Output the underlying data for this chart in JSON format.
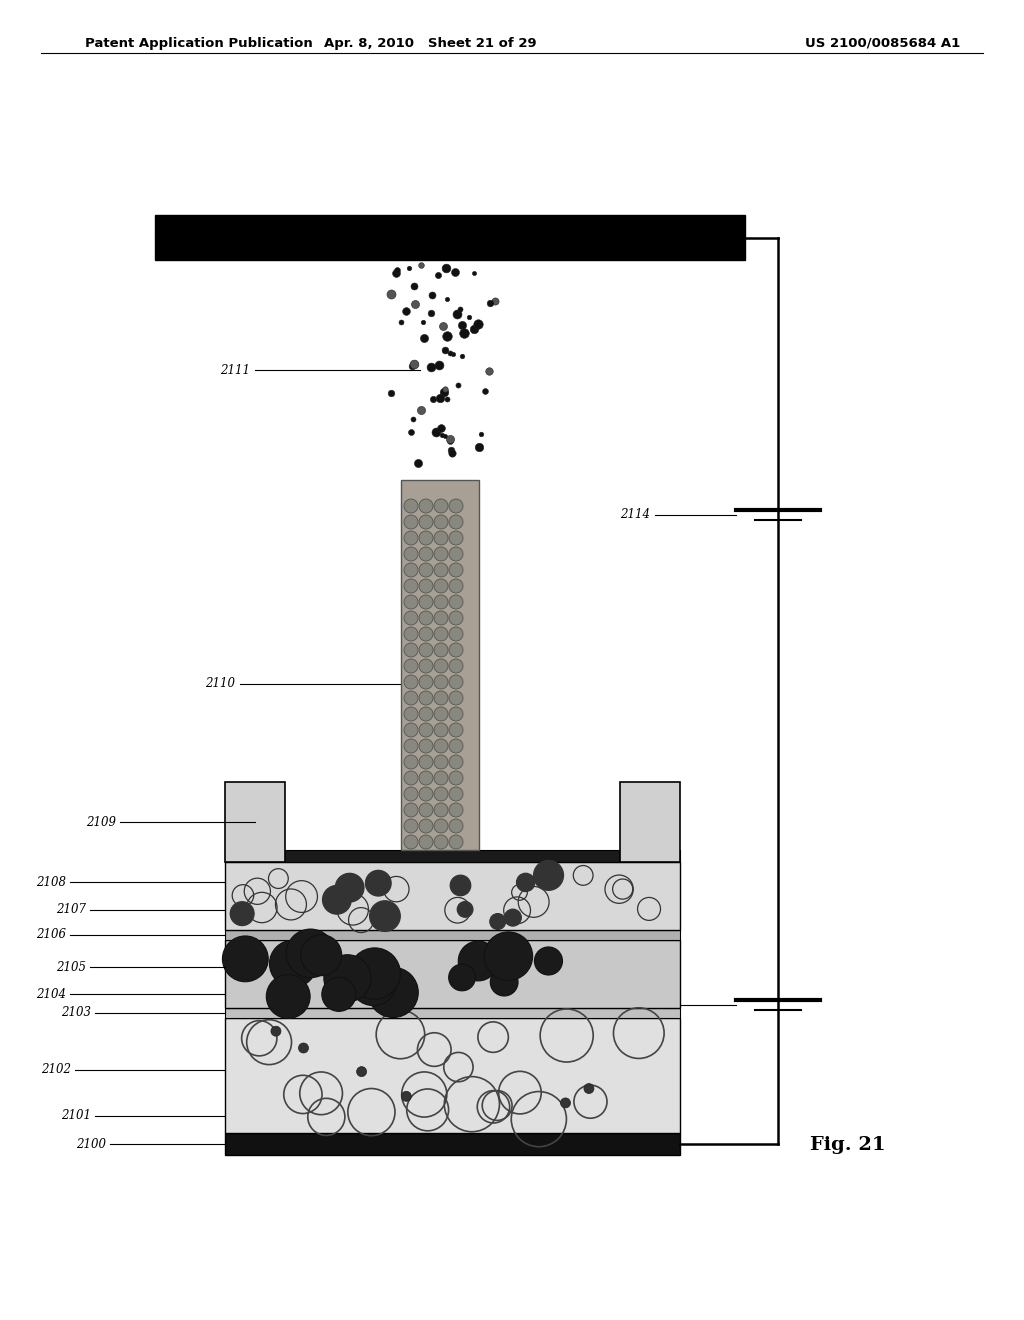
{
  "title_left": "Patent Application Publication",
  "title_mid": "Apr. 8, 2010   Sheet 21 of 29",
  "title_right": "US 2100/0085684 A1",
  "fig_label": "Fig. 21",
  "bg_color": "#ffffff"
}
